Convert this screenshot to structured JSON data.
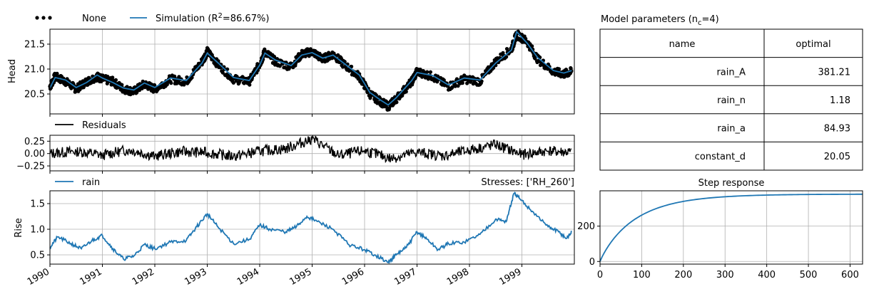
{
  "colors": {
    "observed": "#000000",
    "simulation": "#1f77b4",
    "residuals": "#000000",
    "rain": "#1f77b4"
  },
  "chart_data": [
    {
      "name": "head",
      "type": "line",
      "ylabel": "Head",
      "xlim": [
        "1990-01-01",
        "1999-12-31"
      ],
      "ylim": [
        20.1,
        21.8
      ],
      "yticks": [
        "20.5",
        "21.0",
        "21.5"
      ],
      "grid": true,
      "legend": {
        "placement": "top-left",
        "observed_label": "None",
        "simulation_label": "Simulation (R",
        "simulation_label_sup": "2",
        "simulation_label_tail": "=86.67%)"
      },
      "series": [
        {
          "name": "None",
          "style": "dots",
          "x": [
            1990.0,
            1990.1,
            1990.3,
            1990.5,
            1990.7,
            1990.9,
            1991.0,
            1991.2,
            1991.4,
            1991.6,
            1991.8,
            1992.0,
            1992.3,
            1992.6,
            1992.9,
            1993.0,
            1993.2,
            1993.5,
            1993.8,
            1994.0,
            1994.1,
            1994.3,
            1994.6,
            1994.8,
            1995.0,
            1995.2,
            1995.4,
            1995.6,
            1995.9,
            1996.1,
            1996.3,
            1996.45,
            1996.6,
            1996.9,
            1997.0,
            1997.3,
            1997.6,
            1997.9,
            1998.2,
            1998.5,
            1998.8,
            1998.9,
            1999.1,
            1999.3,
            1999.6,
            1999.8,
            1999.95
          ],
          "y": [
            20.65,
            20.85,
            20.75,
            20.6,
            20.75,
            20.85,
            20.8,
            20.75,
            20.6,
            20.55,
            20.7,
            20.6,
            20.8,
            20.75,
            21.15,
            21.35,
            21.1,
            20.8,
            20.75,
            21.1,
            21.35,
            21.15,
            21.05,
            21.3,
            21.35,
            21.2,
            21.3,
            21.1,
            20.85,
            20.5,
            20.35,
            20.25,
            20.4,
            20.75,
            20.95,
            20.85,
            20.65,
            20.8,
            20.75,
            21.15,
            21.4,
            21.7,
            21.55,
            21.2,
            20.95,
            20.9,
            20.95
          ]
        },
        {
          "name": "Simulation",
          "style": "line",
          "x": [
            1990.0,
            1990.1,
            1990.3,
            1990.5,
            1990.7,
            1990.9,
            1991.0,
            1991.2,
            1991.4,
            1991.6,
            1991.8,
            1992.0,
            1992.3,
            1992.6,
            1992.9,
            1993.0,
            1993.2,
            1993.5,
            1993.8,
            1994.0,
            1994.1,
            1994.3,
            1994.6,
            1994.8,
            1995.0,
            1995.2,
            1995.4,
            1995.6,
            1995.9,
            1996.1,
            1996.3,
            1996.45,
            1996.6,
            1996.9,
            1997.0,
            1997.3,
            1997.6,
            1997.9,
            1998.2,
            1998.5,
            1998.8,
            1998.9,
            1999.1,
            1999.3,
            1999.6,
            1999.8,
            1999.95
          ],
          "y": [
            20.62,
            20.83,
            20.78,
            20.63,
            20.73,
            20.88,
            20.82,
            20.73,
            20.62,
            20.58,
            20.72,
            20.63,
            20.82,
            20.77,
            21.12,
            21.32,
            21.13,
            20.83,
            20.77,
            21.08,
            21.32,
            21.18,
            21.07,
            21.28,
            21.33,
            21.22,
            21.28,
            21.12,
            20.88,
            20.53,
            20.38,
            20.28,
            20.42,
            20.77,
            20.93,
            20.87,
            20.68,
            20.82,
            20.78,
            21.12,
            21.38,
            21.75,
            21.52,
            21.23,
            20.97,
            20.92,
            20.97
          ]
        }
      ]
    },
    {
      "name": "residuals",
      "type": "line",
      "xlim": [
        "1990-01-01",
        "1999-12-31"
      ],
      "ylim": [
        -0.35,
        0.37
      ],
      "yticks": [
        "−0.25",
        "0.00",
        "0.25"
      ],
      "grid": true,
      "legend": {
        "placement": "top-left",
        "label": "Residuals"
      },
      "series": [
        {
          "name": "Residuals",
          "x": [
            1990.0,
            1990.5,
            1991.0,
            1991.5,
            1992.0,
            1992.5,
            1993.0,
            1993.5,
            1994.0,
            1994.5,
            1995.0,
            1995.5,
            1996.0,
            1996.5,
            1997.0,
            1997.5,
            1998.0,
            1998.5,
            1999.0,
            1999.5,
            1999.95
          ],
          "y": [
            0.0,
            0.05,
            -0.03,
            0.08,
            -0.05,
            0.04,
            0.02,
            -0.06,
            0.05,
            0.1,
            0.3,
            -0.04,
            0.06,
            -0.1,
            0.03,
            -0.05,
            0.07,
            0.18,
            -0.02,
            0.05,
            0.02
          ]
        }
      ]
    },
    {
      "name": "rain",
      "type": "line",
      "title_right": "Stresses: ['RH_260']",
      "ylabel": "Rise",
      "xlim": [
        "1990-01-01",
        "1999-12-31"
      ],
      "ylim": [
        0.32,
        1.75
      ],
      "yticks": [
        "0.5",
        "1.0",
        "1.5"
      ],
      "xticks": [
        "1990",
        "1991",
        "1992",
        "1993",
        "1994",
        "1995",
        "1996",
        "1997",
        "1998",
        "1999"
      ],
      "grid": true,
      "legend": {
        "placement": "top-left",
        "label": "rain"
      },
      "series": [
        {
          "name": "rain",
          "x": [
            1990.0,
            1990.15,
            1990.4,
            1990.6,
            1990.8,
            1991.0,
            1991.2,
            1991.4,
            1991.6,
            1991.8,
            1992.0,
            1992.3,
            1992.6,
            1992.8,
            1993.0,
            1993.2,
            1993.5,
            1993.8,
            1994.0,
            1994.2,
            1994.5,
            1994.7,
            1994.9,
            1995.1,
            1995.4,
            1995.7,
            1996.0,
            1996.2,
            1996.45,
            1996.6,
            1996.8,
            1997.0,
            1997.2,
            1997.4,
            1997.6,
            1997.9,
            1998.2,
            1998.5,
            1998.7,
            1998.85,
            1998.95,
            1999.2,
            1999.5,
            1999.7,
            1999.85,
            1999.95
          ],
          "y": [
            0.65,
            0.85,
            0.72,
            0.62,
            0.78,
            0.88,
            0.62,
            0.42,
            0.48,
            0.7,
            0.62,
            0.75,
            0.78,
            1.05,
            1.3,
            1.05,
            0.72,
            0.8,
            1.08,
            1.0,
            0.95,
            1.05,
            1.25,
            1.15,
            1.0,
            0.7,
            0.6,
            0.5,
            0.35,
            0.5,
            0.65,
            0.95,
            0.8,
            0.6,
            0.72,
            0.75,
            0.9,
            1.2,
            1.15,
            1.7,
            1.6,
            1.35,
            1.05,
            0.95,
            0.82,
            0.95
          ]
        }
      ]
    },
    {
      "name": "params-table",
      "type": "table",
      "title": "Model parameters (n",
      "title_sub": "c",
      "title_tail": "=4)",
      "columns": [
        "name",
        "optimal"
      ],
      "rows": [
        [
          "rain_A",
          "381.21"
        ],
        [
          "rain_n",
          "1.18"
        ],
        [
          "rain_a",
          "84.93"
        ],
        [
          "constant_d",
          "20.05"
        ]
      ]
    },
    {
      "name": "step-response",
      "type": "line",
      "title": "Step response",
      "xlim": [
        0,
        630
      ],
      "ylim": [
        -15,
        400
      ],
      "xticks": [
        0,
        100,
        200,
        300,
        400,
        500,
        600
      ],
      "yticks": [
        0,
        200
      ],
      "grid": true,
      "series": [
        {
          "name": "step",
          "gain": 381.21,
          "scale": 84.93,
          "n": 1.18
        }
      ]
    }
  ]
}
